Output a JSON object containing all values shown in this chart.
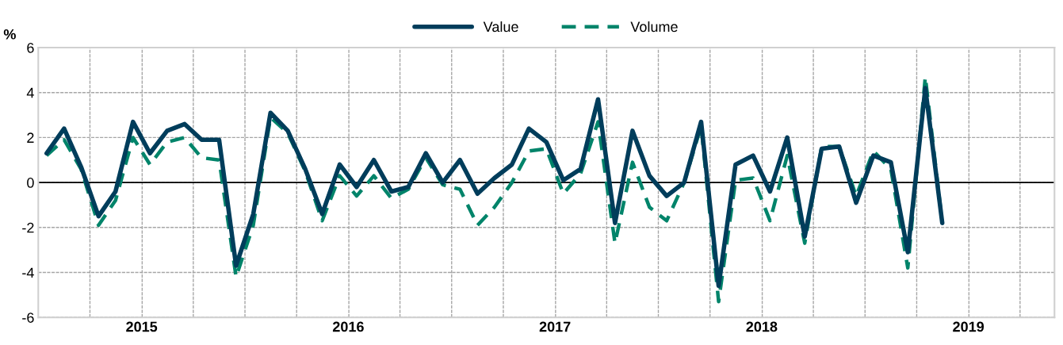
{
  "chart_data": {
    "type": "line",
    "ylabel": "%",
    "x": [
      "2015-01-16",
      "2015-02-15",
      "2015-03-16",
      "2015-04-16",
      "2015-05-16",
      "2015-06-16",
      "2015-07-16",
      "2015-08-16",
      "2015-09-16",
      "2015-10-16",
      "2015-11-16",
      "2015-12-16",
      "2016-01-16",
      "2016-02-15",
      "2016-03-16",
      "2016-04-16",
      "2016-05-16",
      "2016-06-16",
      "2016-07-16",
      "2016-08-16",
      "2016-09-16",
      "2016-10-16",
      "2016-11-16",
      "2016-12-16",
      "2017-01-16",
      "2017-02-15",
      "2017-03-16",
      "2017-04-16",
      "2017-05-16",
      "2017-06-16",
      "2017-07-16",
      "2017-08-16",
      "2017-09-16",
      "2017-10-16",
      "2017-11-16",
      "2017-12-16",
      "2018-01-16",
      "2018-02-15",
      "2018-03-16",
      "2018-04-16",
      "2018-05-16",
      "2018-06-16",
      "2018-07-16",
      "2018-08-16",
      "2018-09-16",
      "2018-10-16",
      "2018-11-16",
      "2018-12-16",
      "2019-01-16",
      "2019-02-15",
      "2019-03-16",
      "2019-04-16",
      "2019-05-16"
    ],
    "series": [
      {
        "name": "Value",
        "color": "#003d5b",
        "line_style": "solid",
        "values": [
          1.3,
          2.4,
          0.7,
          -1.5,
          -0.4,
          2.7,
          1.3,
          2.3,
          2.6,
          1.9,
          1.9,
          -3.7,
          -1.4,
          3.1,
          2.3,
          0.6,
          -1.4,
          0.8,
          -0.2,
          1.0,
          -0.4,
          -0.2,
          1.3,
          0.0,
          1.0,
          -0.5,
          0.2,
          0.8,
          2.4,
          1.8,
          0.1,
          0.6,
          3.7,
          -1.8,
          2.3,
          0.3,
          -0.6,
          0.0,
          2.7,
          -4.6,
          0.8,
          1.2,
          -0.4,
          2.0,
          -2.4,
          1.5,
          1.6,
          -0.9,
          1.2,
          0.9,
          -3.1,
          4.2,
          -1.8
        ]
      },
      {
        "name": "Volume",
        "color": "#00846a",
        "line_style": "dashed",
        "values": [
          1.2,
          1.9,
          0.6,
          -1.9,
          -0.8,
          2.0,
          0.8,
          1.8,
          2.0,
          1.1,
          1.0,
          -4.2,
          -1.9,
          2.9,
          2.2,
          0.5,
          -1.7,
          0.3,
          -0.6,
          0.3,
          -0.7,
          -0.3,
          1.1,
          -0.1,
          -0.3,
          -1.9,
          -1.1,
          0.0,
          1.4,
          1.5,
          -0.5,
          0.4,
          2.7,
          -2.7,
          0.9,
          -1.1,
          -1.7,
          0.0,
          2.5,
          -5.3,
          0.1,
          0.2,
          -1.7,
          1.2,
          -2.7,
          1.6,
          1.6,
          -0.6,
          1.4,
          0.6,
          -3.8,
          4.7,
          -1.8
        ]
      }
    ],
    "ylim": [
      -6,
      6
    ],
    "yticks": [
      -6,
      -4,
      -2,
      0,
      2,
      4,
      6
    ],
    "xlim": [
      "2015-01-01",
      "2019-12-01"
    ],
    "xticks": [
      {
        "value": "2015-04-01",
        "label": null
      },
      {
        "value": "2015-07-01",
        "label": "2015"
      },
      {
        "value": "2015-07-02",
        "label": null
      },
      {
        "value": "2015-10-01",
        "label": null
      },
      {
        "value": "2016-01-01",
        "label": null
      },
      {
        "value": "2016-04-01",
        "label": null
      },
      {
        "value": "2016-07-01",
        "label": "2016"
      },
      {
        "value": "2016-07-02",
        "label": null
      },
      {
        "value": "2016-10-01",
        "label": null
      },
      {
        "value": "2017-01-01",
        "label": null
      },
      {
        "value": "2017-04-01",
        "label": null
      },
      {
        "value": "2017-07-01",
        "label": "2017"
      },
      {
        "value": "2017-07-02",
        "label": null
      },
      {
        "value": "2017-10-01",
        "label": null
      },
      {
        "value": "2018-01-01",
        "label": null
      },
      {
        "value": "2018-04-01",
        "label": null
      },
      {
        "value": "2018-07-01",
        "label": "2018"
      },
      {
        "value": "2018-07-02",
        "label": null
      },
      {
        "value": "2018-10-01",
        "label": null
      },
      {
        "value": "2019-01-01",
        "label": null
      },
      {
        "value": "2019-04-01",
        "label": null
      },
      {
        "value": "2019-07-01",
        "label": "2019"
      },
      {
        "value": "2019-07-02",
        "label": null
      },
      {
        "value": "2019-10-01",
        "label": null
      }
    ],
    "ref_lines": [
      {
        "axis": "y",
        "value": 0,
        "color": "#000000",
        "line_style": "solid"
      }
    ],
    "grid": true,
    "legend": "top",
    "marker": "none"
  }
}
